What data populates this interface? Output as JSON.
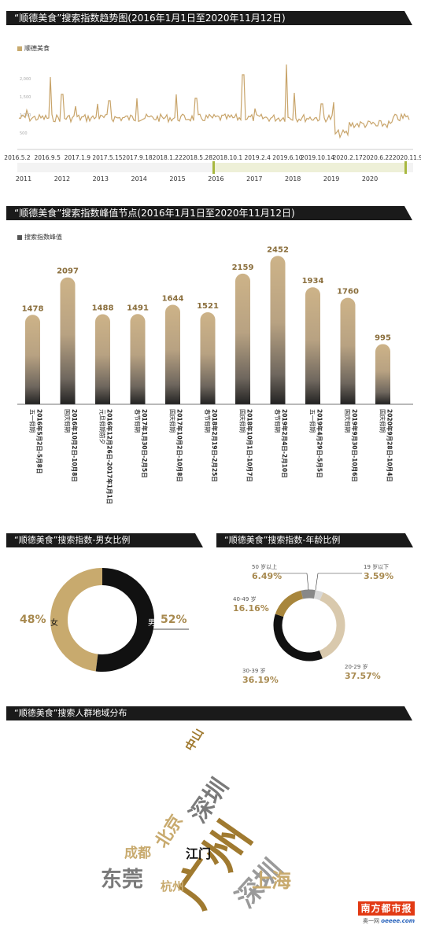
{
  "trend": {
    "title": "“顺德美食”搜索指数趋势图(2016年1月1日至2020年11月12日)",
    "legend": "顺德美食",
    "y_ticks": [
      "2,000",
      "1,500",
      "1,000",
      "500"
    ],
    "date_labels": [
      "2016.5.2",
      "2016.9.5",
      "2017.1.9",
      "2017.5.15",
      "2017.9.18",
      "2018.1.22",
      "2018.5.28",
      "2018.10.1",
      "2019.2.4",
      "2019.6.10",
      "2019.10.14",
      "2020.2.17",
      "2020.6.22",
      "2020.11.9"
    ],
    "year_labels": [
      "2011",
      "2012",
      "2013",
      "2014",
      "2015",
      "2016",
      "2017",
      "2018",
      "2019",
      "2020"
    ],
    "colors": {
      "line": "#c8a46a",
      "nav_fill": "#eef0d8",
      "nav_handle": "#a8b840"
    }
  },
  "peaks": {
    "title": "“顺德美食”搜索指数峰值节点(2016年1月1日至2020年11月12日)",
    "legend": "搜索指数峰值"
  },
  "gender": {
    "title": "“顺德美食”搜索指数-男女比例",
    "female_label": "女",
    "female_pct": "48%",
    "male_label": "男",
    "male_pct": "52%",
    "colors": {
      "female": "#c8aa6e",
      "male": "#111111"
    }
  },
  "age": {
    "title": "“顺德美食”搜索指数-年龄比例",
    "segments": [
      {
        "label": "19 岁以下",
        "pct": "3.59%",
        "value": 3.59,
        "color": "#d8d8d8"
      },
      {
        "label": "20-29 岁",
        "pct": "37.57%",
        "value": 37.57,
        "color": "#d9c9ad"
      },
      {
        "label": "30-39 岁",
        "pct": "36.19%",
        "value": 36.19,
        "color": "#111111"
      },
      {
        "label": "40-49 岁",
        "pct": "16.16%",
        "value": 16.16,
        "color": "#a8863c"
      },
      {
        "label": "50 岁以上",
        "pct": "6.49%",
        "value": 6.49,
        "color": "#888888"
      }
    ]
  },
  "region": {
    "title": "“顺德美食”搜索人群地域分布",
    "words": [
      {
        "text": "中山",
        "color": "#a07a30"
      },
      {
        "text": "深圳",
        "color": "#7a7a7a"
      },
      {
        "text": "北京",
        "color": "#c8aa6e"
      },
      {
        "text": "广州",
        "color": "#a07a30"
      },
      {
        "text": "成都",
        "color": "#c8aa6e"
      },
      {
        "text": "江门",
        "color": "#111111"
      },
      {
        "text": "深圳",
        "color": "#9a9a9a"
      },
      {
        "text": "东莞",
        "color": "#7a7a7a"
      },
      {
        "text": "杭州",
        "color": "#c8aa6e"
      },
      {
        "text": "上海",
        "color": "#c8aa6e"
      }
    ]
  },
  "branding": {
    "name": "南方都市报",
    "site_cn": "奥一网",
    "site_en": "oeeee.com",
    "color": "#e23a14"
  },
  "chart_data": [
    {
      "type": "line",
      "title": "“顺德美食”搜索指数趋势图(2016年1月1日至2020年11月12日)",
      "series": [
        {
          "name": "顺德美食"
        }
      ],
      "x_range": [
        "2016.1.1",
        "2020.11.12"
      ],
      "ylim": [
        0,
        2400
      ],
      "y_ticks": [
        500,
        1000,
        1500,
        2000
      ],
      "grid": false,
      "legend": "top-left"
    },
    {
      "type": "bar",
      "title": "“顺德美食”搜索指数峰值节点(2016年1月1日至2020年11月12日)",
      "series_name": "搜索指数峰值",
      "categories": [
        {
          "holiday": "五一假期",
          "dates": "2016年5月2日-5月8日"
        },
        {
          "holiday": "国庆假期",
          "dates": "2016年10月2日-10月8日"
        },
        {
          "holiday": "元旦假期前夕",
          "dates": "2016年12月26日-2017年1月1日"
        },
        {
          "holiday": "春节假期",
          "dates": "2017年1月30日-2月5日"
        },
        {
          "holiday": "国庆假期",
          "dates": "2017年10月2日-10月8日"
        },
        {
          "holiday": "春节假期",
          "dates": "2018年2月19日-2月25日"
        },
        {
          "holiday": "国庆假期",
          "dates": "2018年10月1日-10月7日"
        },
        {
          "holiday": "春节假期",
          "dates": "2019年2月4日-2月10日"
        },
        {
          "holiday": "五一假期",
          "dates": "2019年4月29日-5月5日"
        },
        {
          "holiday": "国庆假期",
          "dates": "2019年9月30日-10月6日"
        },
        {
          "holiday": "国庆假期",
          "dates": "2020年9月28日-10月4日"
        }
      ],
      "values": [
        1478,
        2097,
        1488,
        1491,
        1644,
        1521,
        2159,
        2452,
        1934,
        1760,
        995
      ],
      "ylim": [
        0,
        2600
      ]
    },
    {
      "type": "pie",
      "title": "“顺德美食”搜索指数-男女比例",
      "labels": [
        "女",
        "男"
      ],
      "values": [
        48,
        52
      ]
    },
    {
      "type": "pie",
      "title": "“顺德美食”搜索指数-年龄比例",
      "labels": [
        "19 岁以下",
        "20-29 岁",
        "30-39 岁",
        "40-49 岁",
        "50 岁以上"
      ],
      "values": [
        3.59,
        37.57,
        36.19,
        16.16,
        6.49
      ]
    }
  ]
}
